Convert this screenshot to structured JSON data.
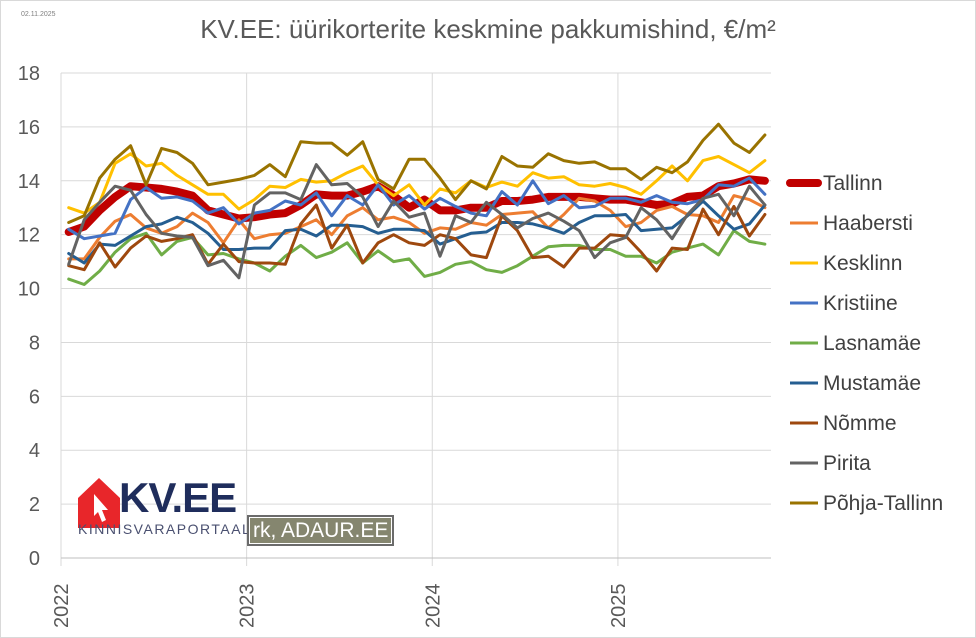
{
  "date_stamp": "02.11.2025",
  "logo": {
    "brand": "KV.EE",
    "tagline": "KINNISVARAPORTAAL"
  },
  "credit": "rk, ADAUR.EE",
  "chart_data": {
    "type": "line",
    "title": "KV.EE: üürikorterite keskmine pakkumishind, €/m²",
    "xlabel": "",
    "ylabel": "",
    "ylim": [
      0,
      18
    ],
    "yticks": [
      0,
      2,
      4,
      6,
      8,
      10,
      12,
      14,
      16,
      18
    ],
    "xticks": [
      "2022",
      "2023",
      "2024",
      "2025"
    ],
    "grid": true,
    "legend": "right",
    "x": [
      "2022-01",
      "2022-02",
      "2022-03",
      "2022-04",
      "2022-05",
      "2022-06",
      "2022-07",
      "2022-08",
      "2022-09",
      "2022-10",
      "2022-11",
      "2022-12",
      "2023-01",
      "2023-02",
      "2023-03",
      "2023-04",
      "2023-05",
      "2023-06",
      "2023-07",
      "2023-08",
      "2023-09",
      "2023-10",
      "2023-11",
      "2023-12",
      "2024-01",
      "2024-02",
      "2024-03",
      "2024-04",
      "2024-05",
      "2024-06",
      "2024-07",
      "2024-08",
      "2024-09",
      "2024-10",
      "2024-11",
      "2024-12",
      "2025-01",
      "2025-02",
      "2025-03",
      "2025-04",
      "2025-05",
      "2025-06",
      "2025-07",
      "2025-08",
      "2025-09",
      "2025-10"
    ],
    "series": [
      {
        "name": "Tallinn",
        "color": "#c00000",
        "values": [
          12.1,
          12.3,
          12.9,
          13.4,
          13.8,
          13.75,
          13.7,
          13.6,
          13.45,
          12.9,
          12.75,
          12.6,
          12.65,
          12.75,
          12.8,
          13.1,
          13.5,
          13.45,
          13.45,
          13.6,
          13.8,
          13.45,
          13.0,
          13.3,
          12.9,
          12.9,
          13.0,
          13.0,
          13.25,
          13.25,
          13.3,
          13.4,
          13.4,
          13.4,
          13.35,
          13.3,
          13.3,
          13.2,
          13.1,
          13.15,
          13.4,
          13.45,
          13.8,
          13.9,
          14.05,
          14.0
        ]
      },
      {
        "name": "Haabersti",
        "color": "#ed7d31",
        "values": [
          11.1,
          11.1,
          11.9,
          12.5,
          12.75,
          12.25,
          12.05,
          12.3,
          12.8,
          12.45,
          11.7,
          12.55,
          11.85,
          12.0,
          12.05,
          12.3,
          12.55,
          12.0,
          12.7,
          13.0,
          12.55,
          12.65,
          12.45,
          12.05,
          12.25,
          12.2,
          12.45,
          12.35,
          12.75,
          12.8,
          12.85,
          12.25,
          12.75,
          13.35,
          13.25,
          12.9,
          12.3,
          12.45,
          12.9,
          13.05,
          12.75,
          12.7,
          12.45,
          13.45,
          13.3,
          13.0
        ]
      },
      {
        "name": "Kesklinn",
        "color": "#ffc000",
        "values": [
          13.0,
          12.8,
          13.2,
          14.65,
          15.0,
          14.55,
          14.65,
          14.2,
          13.85,
          13.5,
          13.5,
          12.95,
          13.3,
          13.8,
          13.75,
          14.05,
          13.95,
          14.0,
          14.3,
          14.55,
          13.85,
          13.45,
          13.85,
          13.1,
          13.7,
          13.55,
          14.0,
          13.75,
          13.95,
          13.8,
          14.3,
          14.1,
          14.15,
          13.85,
          13.8,
          13.9,
          13.75,
          13.5,
          14.0,
          14.55,
          14.0,
          14.75,
          14.9,
          14.6,
          14.3,
          14.75
        ]
      },
      {
        "name": "Kristiine",
        "color": "#4472c4",
        "values": [
          12.2,
          11.85,
          11.95,
          12.05,
          13.3,
          13.75,
          13.35,
          13.4,
          13.25,
          12.8,
          13.0,
          12.4,
          12.8,
          12.9,
          13.25,
          13.1,
          13.55,
          12.7,
          13.45,
          13.1,
          13.85,
          13.1,
          13.45,
          12.95,
          13.35,
          13.05,
          12.8,
          12.7,
          13.6,
          13.1,
          14.0,
          13.15,
          13.45,
          13.0,
          13.05,
          13.35,
          13.35,
          13.2,
          13.45,
          13.2,
          13.15,
          13.3,
          13.85,
          13.8,
          14.1,
          13.5
        ]
      },
      {
        "name": "Lasnamäe",
        "color": "#70ad47",
        "values": [
          10.35,
          10.15,
          10.65,
          11.35,
          11.85,
          12.05,
          11.25,
          11.75,
          11.9,
          11.25,
          11.3,
          11.1,
          10.95,
          10.65,
          11.2,
          11.6,
          11.15,
          11.35,
          11.7,
          10.95,
          11.4,
          11.0,
          11.1,
          10.45,
          10.6,
          10.9,
          11.0,
          10.7,
          10.6,
          10.85,
          11.2,
          11.55,
          11.6,
          11.6,
          11.45,
          11.45,
          11.2,
          11.2,
          10.95,
          11.35,
          11.5,
          11.65,
          11.25,
          12.15,
          11.75,
          11.65
        ]
      },
      {
        "name": "Mustamäe",
        "color": "#255e91",
        "values": [
          11.3,
          10.95,
          11.65,
          11.6,
          11.95,
          12.3,
          12.4,
          12.65,
          12.45,
          12.05,
          11.45,
          11.45,
          11.5,
          11.5,
          12.15,
          12.2,
          11.95,
          12.35,
          12.35,
          12.3,
          12.05,
          12.2,
          12.2,
          12.15,
          11.65,
          11.85,
          12.05,
          12.1,
          12.45,
          12.45,
          12.4,
          12.25,
          12.05,
          12.45,
          12.7,
          12.7,
          12.75,
          12.15,
          12.2,
          12.25,
          12.7,
          13.25,
          12.7,
          12.2,
          12.4,
          13.1
        ]
      },
      {
        "name": "Nõmme",
        "color": "#9e480e",
        "values": [
          10.85,
          10.7,
          11.7,
          10.8,
          11.5,
          11.95,
          11.75,
          11.85,
          12.0,
          10.9,
          11.65,
          11.0,
          10.95,
          10.95,
          10.9,
          12.4,
          13.1,
          11.5,
          12.35,
          10.95,
          11.7,
          12.0,
          11.7,
          11.6,
          12.0,
          11.85,
          11.25,
          11.15,
          12.7,
          12.15,
          11.15,
          11.2,
          10.8,
          11.5,
          11.5,
          12.0,
          11.95,
          11.35,
          10.65,
          11.5,
          11.45,
          12.95,
          12.0,
          13.05,
          11.95,
          12.75
        ]
      },
      {
        "name": "Pirita",
        "color": "#636363",
        "values": [
          10.9,
          12.55,
          13.2,
          13.8,
          13.65,
          12.75,
          12.05,
          11.95,
          11.9,
          10.85,
          11.05,
          10.4,
          13.1,
          13.55,
          13.55,
          13.3,
          14.6,
          13.85,
          13.9,
          13.4,
          12.3,
          13.25,
          12.65,
          12.8,
          11.2,
          12.7,
          12.45,
          13.2,
          12.75,
          12.25,
          12.6,
          12.8,
          12.5,
          12.15,
          11.15,
          11.7,
          11.9,
          13.0,
          12.55,
          11.85,
          12.75,
          13.35,
          13.5,
          12.7,
          13.8,
          13.1
        ]
      },
      {
        "name": "Põhja-Tallinn",
        "color": "#997300",
        "values": [
          12.45,
          12.7,
          14.1,
          14.8,
          15.3,
          13.85,
          15.2,
          15.05,
          14.65,
          13.85,
          13.95,
          14.05,
          14.2,
          14.6,
          14.15,
          15.45,
          15.4,
          15.4,
          14.95,
          15.45,
          14.05,
          13.7,
          14.8,
          14.8,
          14.1,
          13.3,
          14.0,
          13.7,
          14.9,
          14.55,
          14.5,
          15.0,
          14.75,
          14.65,
          14.7,
          14.45,
          14.45,
          14.05,
          14.5,
          14.3,
          14.7,
          15.5,
          16.1,
          15.4,
          15.05,
          15.7
        ]
      }
    ]
  }
}
